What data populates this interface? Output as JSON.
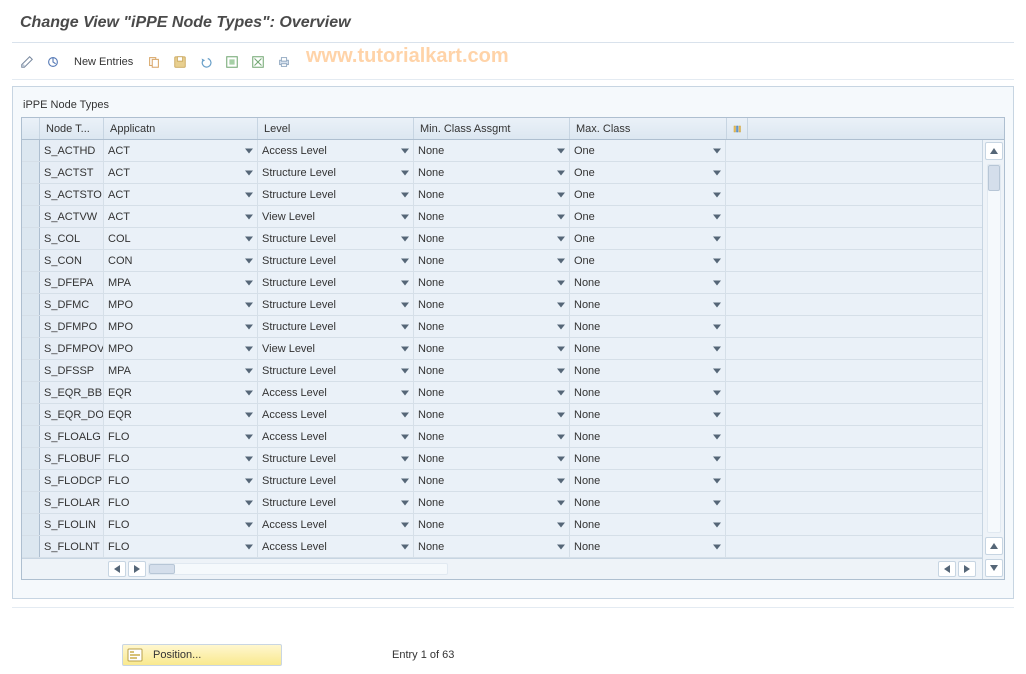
{
  "title": "Change View \"iPPE Node Types\": Overview",
  "watermark": "www.tutorialkart.com",
  "toolbar": {
    "new_entries": "New Entries"
  },
  "panel": {
    "title": "iPPE Node Types"
  },
  "columns": {
    "node": "Node T...",
    "app": "Applicatn",
    "level": "Level",
    "min": "Min. Class Assgmt",
    "max": "Max. Class"
  },
  "rows": [
    {
      "node": "S_ACTHD",
      "app": "ACT",
      "level": "Access Level",
      "min": "None",
      "max": "One"
    },
    {
      "node": "S_ACTST",
      "app": "ACT",
      "level": "Structure Level",
      "min": "None",
      "max": "One"
    },
    {
      "node": "S_ACTSTO",
      "app": "ACT",
      "level": "Structure Level",
      "min": "None",
      "max": "One"
    },
    {
      "node": "S_ACTVW",
      "app": "ACT",
      "level": "View Level",
      "min": "None",
      "max": "One"
    },
    {
      "node": "S_COL",
      "app": "COL",
      "level": "Structure Level",
      "min": "None",
      "max": "One"
    },
    {
      "node": "S_CON",
      "app": "CON",
      "level": "Structure Level",
      "min": "None",
      "max": "One"
    },
    {
      "node": "S_DFEPA",
      "app": "MPA",
      "level": "Structure Level",
      "min": "None",
      "max": "None"
    },
    {
      "node": "S_DFMC",
      "app": "MPO",
      "level": "Structure Level",
      "min": "None",
      "max": "None"
    },
    {
      "node": "S_DFMPO",
      "app": "MPO",
      "level": "Structure Level",
      "min": "None",
      "max": "None"
    },
    {
      "node": "S_DFMPOV",
      "app": "MPO",
      "level": "View Level",
      "min": "None",
      "max": "None"
    },
    {
      "node": "S_DFSSP",
      "app": "MPA",
      "level": "Structure Level",
      "min": "None",
      "max": "None"
    },
    {
      "node": "S_EQR_BB",
      "app": "EQR",
      "level": "Access Level",
      "min": "None",
      "max": "None"
    },
    {
      "node": "S_EQR_DO",
      "app": "EQR",
      "level": "Access Level",
      "min": "None",
      "max": "None"
    },
    {
      "node": "S_FLOALG",
      "app": "FLO",
      "level": "Access Level",
      "min": "None",
      "max": "None"
    },
    {
      "node": "S_FLOBUF",
      "app": "FLO",
      "level": "Structure Level",
      "min": "None",
      "max": "None"
    },
    {
      "node": "S_FLODCP",
      "app": "FLO",
      "level": "Structure Level",
      "min": "None",
      "max": "None"
    },
    {
      "node": "S_FLOLAR",
      "app": "FLO",
      "level": "Structure Level",
      "min": "None",
      "max": "None"
    },
    {
      "node": "S_FLOLIN",
      "app": "FLO",
      "level": "Access Level",
      "min": "None",
      "max": "None"
    },
    {
      "node": "S_FLOLNT",
      "app": "FLO",
      "level": "Access Level",
      "min": "None",
      "max": "None"
    }
  ],
  "footer": {
    "position_label": "Position...",
    "entry_label": "Entry 1 of 63"
  },
  "colors": {
    "accent": "#4a6ea9",
    "row_alt": "#eaf1f8",
    "row_plain": "#ffffff",
    "border": "#c7d5e2"
  }
}
